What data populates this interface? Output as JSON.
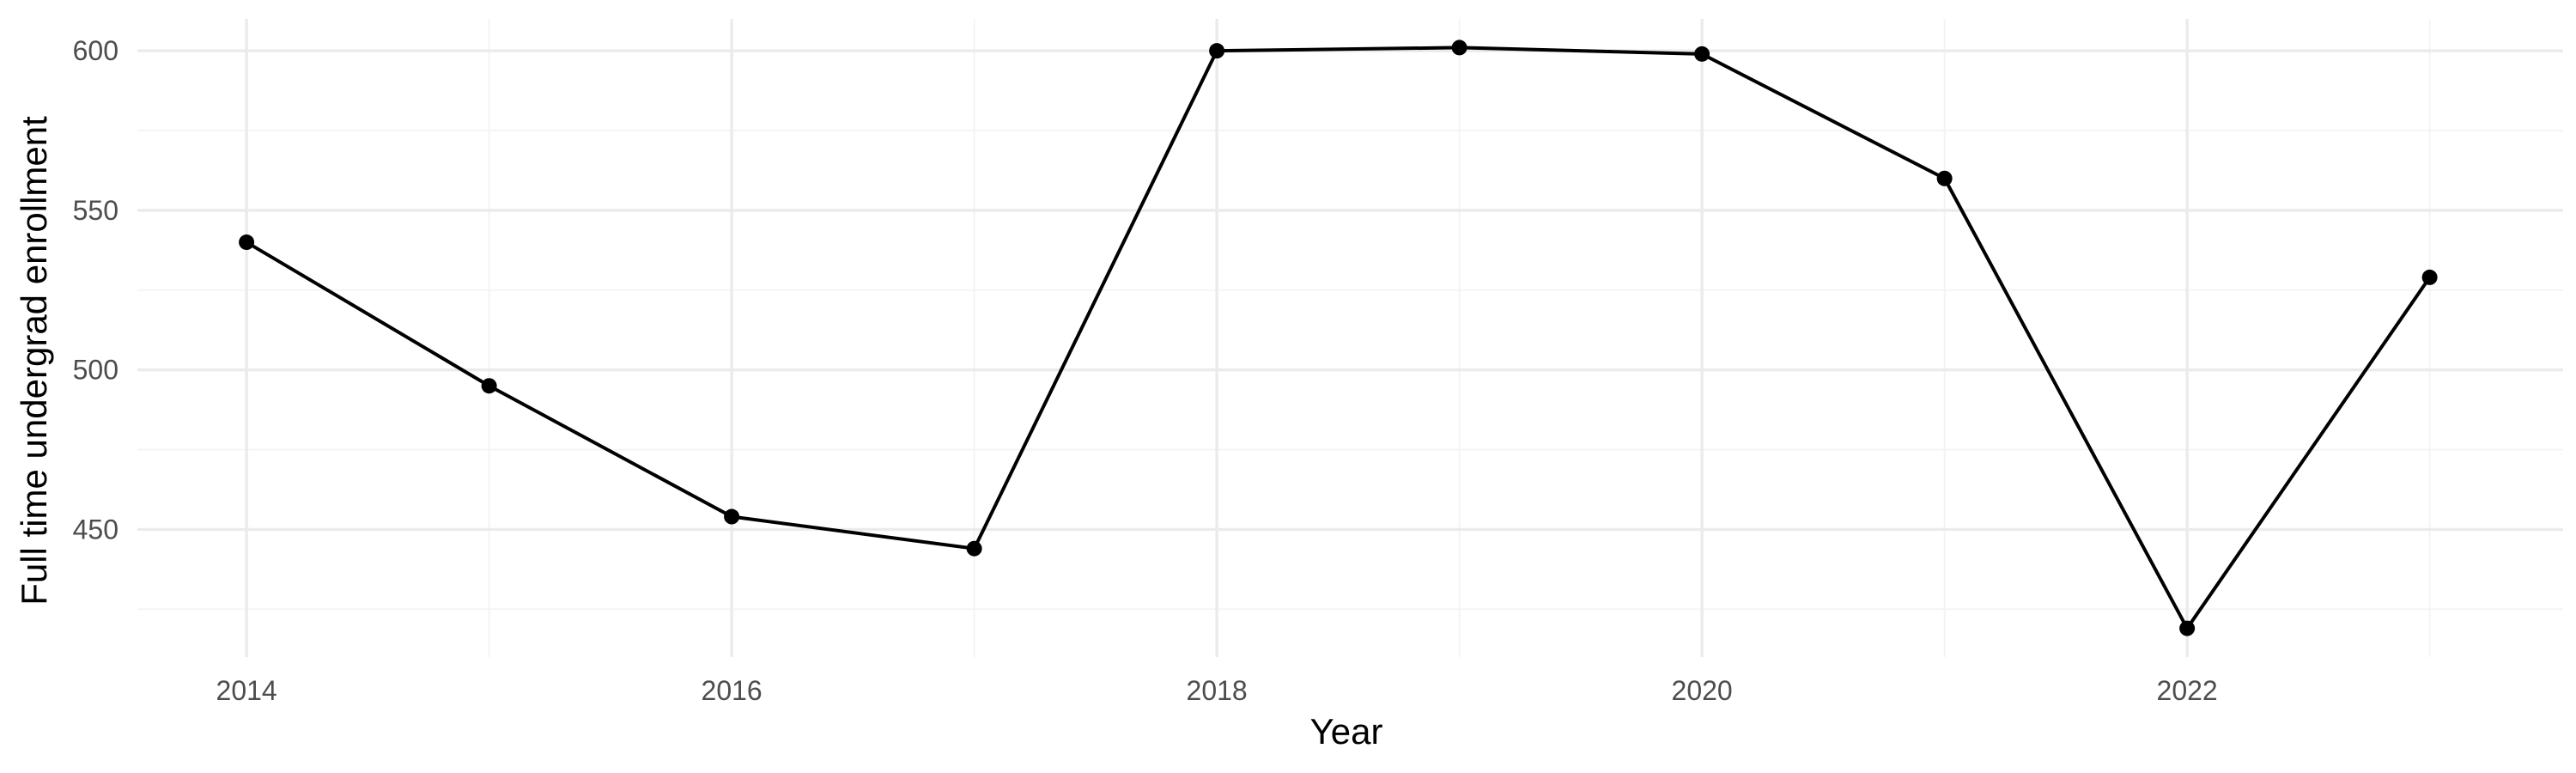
{
  "chart_data": {
    "type": "line",
    "xlabel": "Year",
    "ylabel": "Full time undergrad enrollment",
    "xlim": [
      2013.55,
      2023.55
    ],
    "ylim": [
      410,
      610
    ],
    "x_ticks": [
      2014,
      2016,
      2018,
      2020,
      2022
    ],
    "x_minor_ticks": [
      2015,
      2017,
      2019,
      2021,
      2023
    ],
    "y_ticks": [
      450,
      500,
      550,
      600
    ],
    "y_minor_ticks": [
      425,
      475,
      525,
      575
    ],
    "x_tick_labels": [
      "2014",
      "2016",
      "2018",
      "2020",
      "2022"
    ],
    "y_tick_labels": [
      "450",
      "500",
      "550",
      "600"
    ],
    "grid": true,
    "legend": "none",
    "series": [
      {
        "x": [
          2014,
          2015,
          2016,
          2017,
          2018,
          2019,
          2020,
          2021,
          2022,
          2023
        ],
        "values": [
          540,
          495,
          454,
          444,
          600,
          601,
          599,
          560,
          419,
          529
        ],
        "color": "#000000"
      }
    ]
  }
}
